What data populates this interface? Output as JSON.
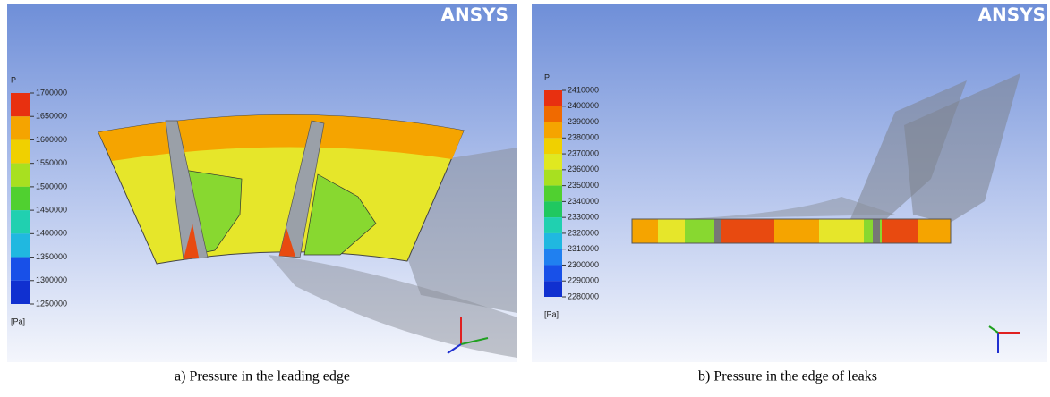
{
  "panels": [
    {
      "logo": "ANSYS",
      "variable": "P",
      "legend_levels": [
        1700000,
        1650000,
        1600000,
        1550000,
        1500000,
        1450000,
        1400000,
        1350000,
        1300000,
        1250000
      ],
      "unit": "[Pa]",
      "caption": "a) Pressure in the leading edge"
    },
    {
      "logo": "ANSYS",
      "variable": "P",
      "legend_levels": [
        2410000,
        2400000,
        2390000,
        2380000,
        2370000,
        2360000,
        2350000,
        2340000,
        2330000,
        2320000,
        2310000,
        2300000,
        2290000,
        2280000
      ],
      "unit": "[Pa]",
      "caption": "b) Pressure in the edge of leaks"
    }
  ]
}
